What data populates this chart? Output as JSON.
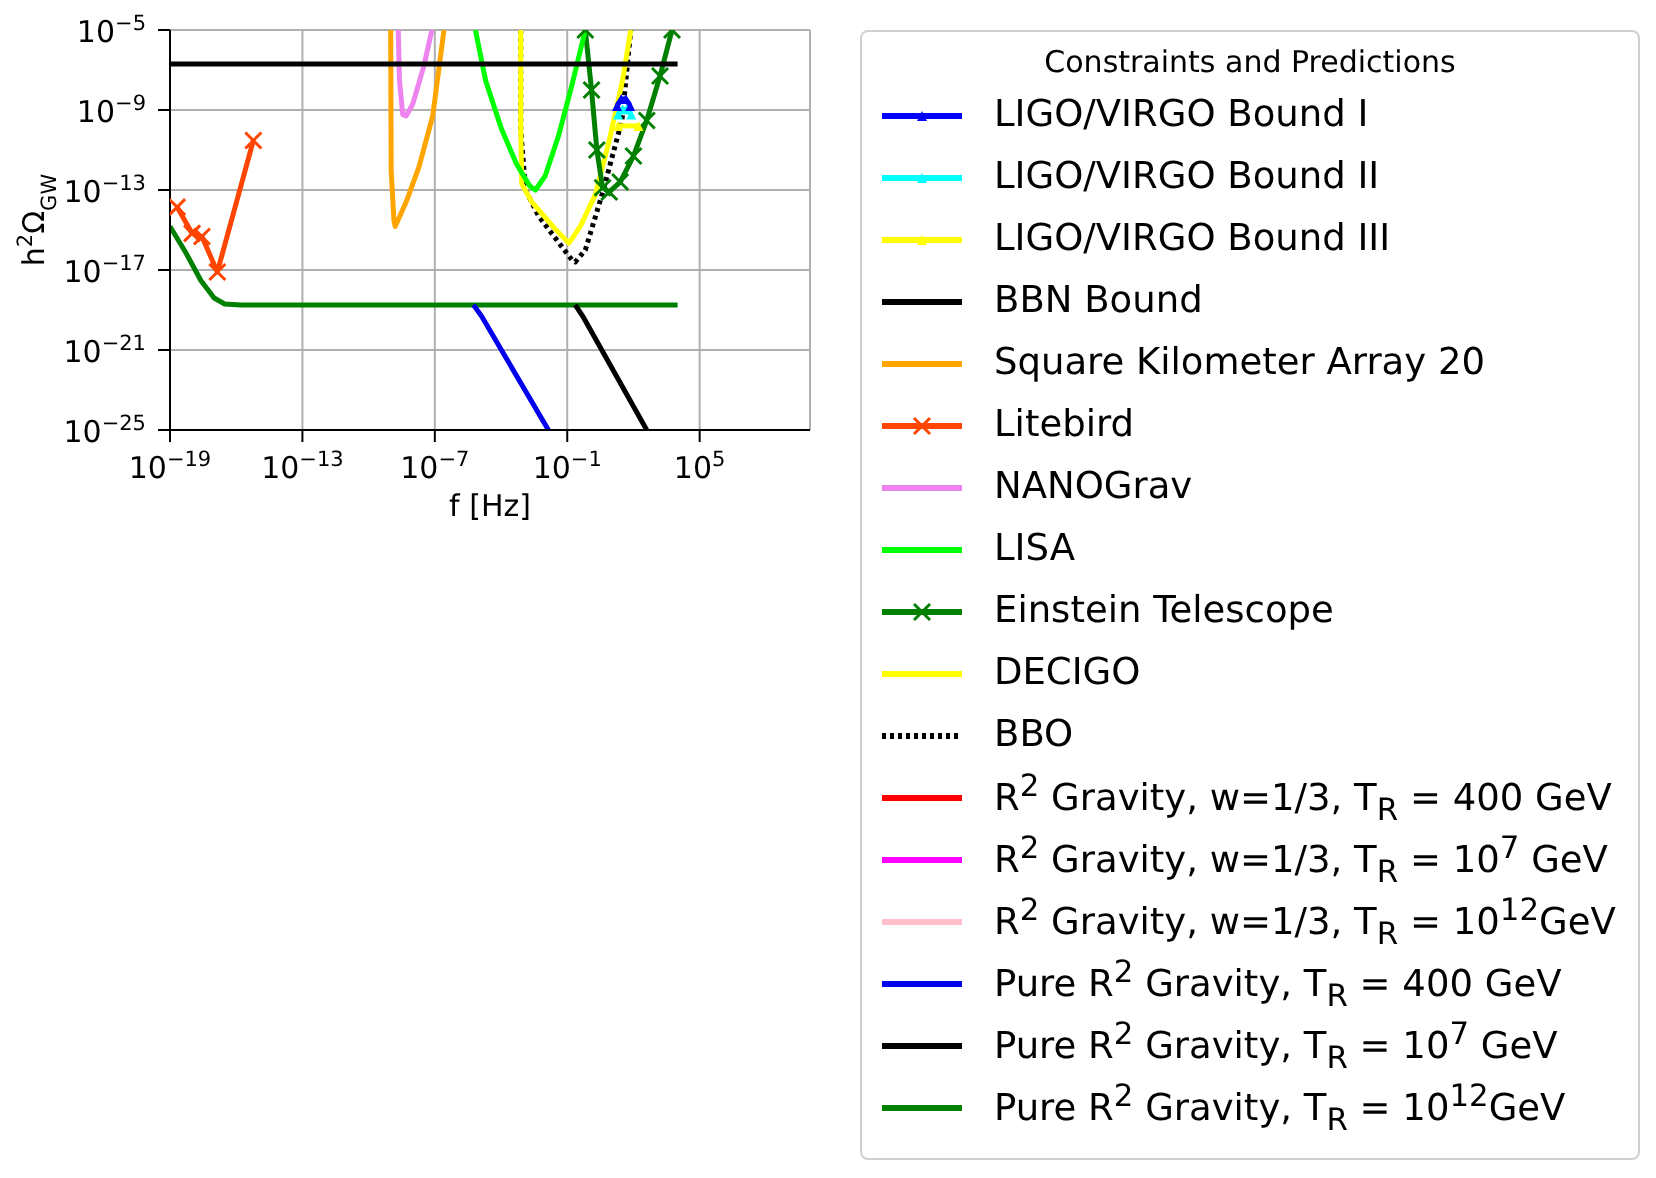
{
  "chart_data": {
    "type": "line",
    "xlabel": "f [Hz]",
    "ylabel": "h$^{2}$Ω$_{GW}$",
    "legend_title": "Constraints and Predictions",
    "legend": "right",
    "grid": true,
    "log": "xy",
    "xlim": [
      1e-19,
      10000000000.0
    ],
    "ylim": [
      1e-25,
      1e-05
    ],
    "xticks": [
      {
        "value": 1e-19,
        "label": "10$^{−19}$"
      },
      {
        "value": 1e-13,
        "label": "10$^{−13}$"
      },
      {
        "value": 1e-07,
        "label": "10$^{−7}$"
      },
      {
        "value": 0.1,
        "label": "10$^{−1}$"
      },
      {
        "value": 100000,
        "label": "10$^{5}$"
      }
    ],
    "yticks": [
      {
        "value": 1e-25,
        "label": "10$^{−25}$"
      },
      {
        "value": 1e-21,
        "label": "10$^{−21}$"
      },
      {
        "value": 1e-17,
        "label": "10$^{−17}$"
      },
      {
        "value": 1e-13,
        "label": "10$^{−13}$"
      },
      {
        "value": 1e-09,
        "label": "10$^{−9}$"
      },
      {
        "value": 1e-05,
        "label": "10$^{−5}$"
      }
    ],
    "series": [
      {
        "name": "LIGO/VIRGO Bound I",
        "color": "#0000ff",
        "marker": "triangle",
        "x": [
          18,
          28,
          45,
          71
        ],
        "values": [
          1.6e-09,
          3.5e-09,
          3.5e-09,
          1.6e-09
        ]
      },
      {
        "name": "LIGO/VIRGO Bound II",
        "color": "#00ffff",
        "marker": "triangle",
        "x": [
          20,
          32,
          50,
          80
        ],
        "values": [
          6e-10,
          1.1e-09,
          1.1e-09,
          6e-10
        ]
      },
      {
        "name": "LIGO/VIRGO Bound III",
        "color": "#ffff00",
        "marker": "triangle",
        "x": [
          20,
          170
        ],
        "values": [
          1.6e-10,
          1.6e-10
        ]
      },
      {
        "name": "BBN Bound",
        "color": "#000000",
        "x": [
          1e-19,
          10000
        ],
        "values": [
          2e-07,
          2e-07
        ]
      },
      {
        "name": "Square Kilometer Array 20",
        "color": "#ffa500",
        "x": [
          1e-09,
          1.05e-09,
          1.4e-09,
          1.6e-09,
          5e-09,
          1.9e-08,
          8e-08,
          2.6e-07
        ],
        "values": [
          1e-05,
          1e-12,
          3e-15,
          1.5e-15,
          2.5e-14,
          1.4e-12,
          5e-10,
          1e-05
        ]
      },
      {
        "name": "Litebird",
        "color": "#ff4500",
        "marker": "cross",
        "x": [
          2.1e-19,
          1e-18,
          2.8e-18,
          1.4e-17,
          6e-16
        ],
        "values": [
          1.4e-14,
          6.8e-16,
          4.7e-16,
          8e-18,
          3e-11
        ]
      },
      {
        "name": "NANOGrav",
        "color": "#ee82ee",
        "x": [
          2.2e-09,
          2.5e-09,
          3.5e-09,
          5e-09,
          1e-08,
          3.2e-08,
          7.4e-08
        ],
        "values": [
          1e-05,
          3e-08,
          6e-10,
          5e-10,
          2e-09,
          1.6e-07,
          1e-05
        ]
      },
      {
        "name": "LISA",
        "color": "#00ff00",
        "x": [
          6.9e-06,
          2e-05,
          0.0001,
          0.0005,
          0.002,
          0.0036,
          0.01,
          0.04,
          0.16,
          0.66
        ],
        "values": [
          1e-05,
          3e-08,
          1.3e-10,
          2e-12,
          1.6e-13,
          1e-13,
          5e-13,
          5e-11,
          1.6e-08,
          1e-05
        ]
      },
      {
        "name": "Einstein Telescope",
        "color": "#008000",
        "marker": "cross",
        "x": [
          0.66,
          1.26,
          2.2,
          4,
          8,
          25,
          100,
          400,
          1600,
          5600
        ],
        "values": [
          1e-05,
          1e-08,
          1e-11,
          1.3e-13,
          8e-14,
          2.5e-13,
          5e-12,
          3e-10,
          5e-08,
          1e-05
        ]
      },
      {
        "name": "DECIGO",
        "color": "#ffff00",
        "x": [
          0.00078,
          0.00078,
          0.00087,
          0.0025,
          0.025,
          0.12,
          0.4,
          1.9,
          8,
          32,
          76
        ],
        "values": [
          1e-05,
          1e-10,
          2e-13,
          2.5e-14,
          1.3e-15,
          2.2e-16,
          1.6e-15,
          6e-14,
          3e-11,
          3e-08,
          1e-05
        ]
      },
      {
        "name": "BBO",
        "color": "#000000",
        "line_style": "dotted",
        "x": [
          0.00078,
          0.00078,
          0.0013,
          0.005,
          0.17,
          0.23,
          0.66,
          3.8,
          30,
          76
        ],
        "values": [
          1e-05,
          1e-10,
          1e-13,
          5e-15,
          3e-17,
          2.5e-17,
          1e-16,
          6e-14,
          3e-10,
          1e-05
        ]
      },
      {
        "name": "R$^{2}$ Gravity,  w=1/3, T$_{R}$ = 400 GeV",
        "color": "#ff0000"
      },
      {
        "name": "R$^{2}$ Gravity,  w=1/3, T$_{R}$ = 10$^{7}$ GeV",
        "color": "#ff00ff"
      },
      {
        "name": "R$^{2}$ Gravity,  w=1/3, T$_{R}$ = 10$^{12}$GeV",
        "color": "#ffc0cb"
      },
      {
        "name": "Pure R$^{2}$ Gravity, T$_{R}$ = 400 GeV",
        "color": "#0000ee",
        "x": [
          5.6e-06,
          1.3e-05,
          0.014
        ],
        "values": [
          1.8e-19,
          5e-20,
          1e-25
        ]
      },
      {
        "name": "Pure R$^{2}$ Gravity, T$_{R}$ = 10$^{7}$ GeV",
        "color": "#000000",
        "x": [
          0.23,
          0.5,
          400
        ],
        "values": [
          1.8e-19,
          5e-20,
          1e-25
        ]
      },
      {
        "name": "Pure R$^{2}$ Gravity, T$_{R}$ = 10$^{12}$GeV",
        "color": "#008000",
        "x": [
          1e-19,
          5e-19,
          2.5e-18,
          1e-17,
          3e-17,
          1.6e-16,
          10000
        ],
        "values": [
          1.5e-15,
          8e-17,
          3e-18,
          4e-19,
          2e-19,
          1.8e-19,
          1.8e-19
        ]
      }
    ]
  }
}
